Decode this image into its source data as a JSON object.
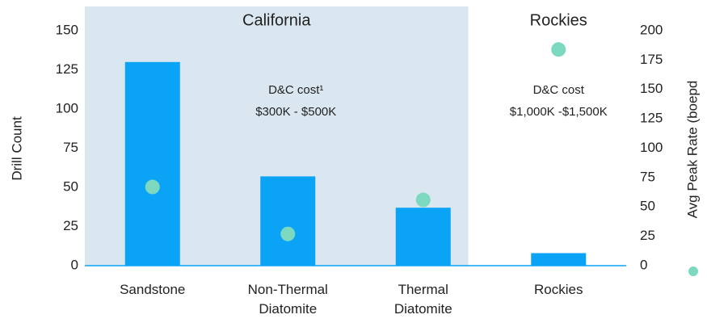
{
  "chart_data": {
    "type": "bar",
    "categories": [
      "Sandstone",
      "Non-Thermal Diatomite",
      "Thermal Diatomite",
      "Rockies"
    ],
    "ylabel": "Drill Count",
    "y2label": "Avg Peak Rate (boepd",
    "ylim": [
      0,
      150
    ],
    "yticks": [
      0,
      25,
      50,
      75,
      100,
      125,
      150
    ],
    "y2lim": [
      0,
      200
    ],
    "y2ticks": [
      0,
      25,
      50,
      75,
      100,
      125,
      150,
      175,
      200
    ],
    "series": [
      {
        "type": "bar",
        "color": "#0ba3f6",
        "values": [
          130,
          57,
          37,
          8
        ]
      },
      {
        "type": "scatter",
        "axis": "y2",
        "color": "#7dd8c0",
        "values": [
          67,
          27,
          56,
          184
        ]
      }
    ],
    "regions": [
      {
        "label": "California",
        "note": [
          "D&C cost¹",
          "$300K - $500K"
        ],
        "color": "#dbe7f0"
      },
      {
        "label": "Rockies",
        "note": [
          "D&C cost",
          "$1,000K -$1,500K"
        ]
      }
    ]
  }
}
